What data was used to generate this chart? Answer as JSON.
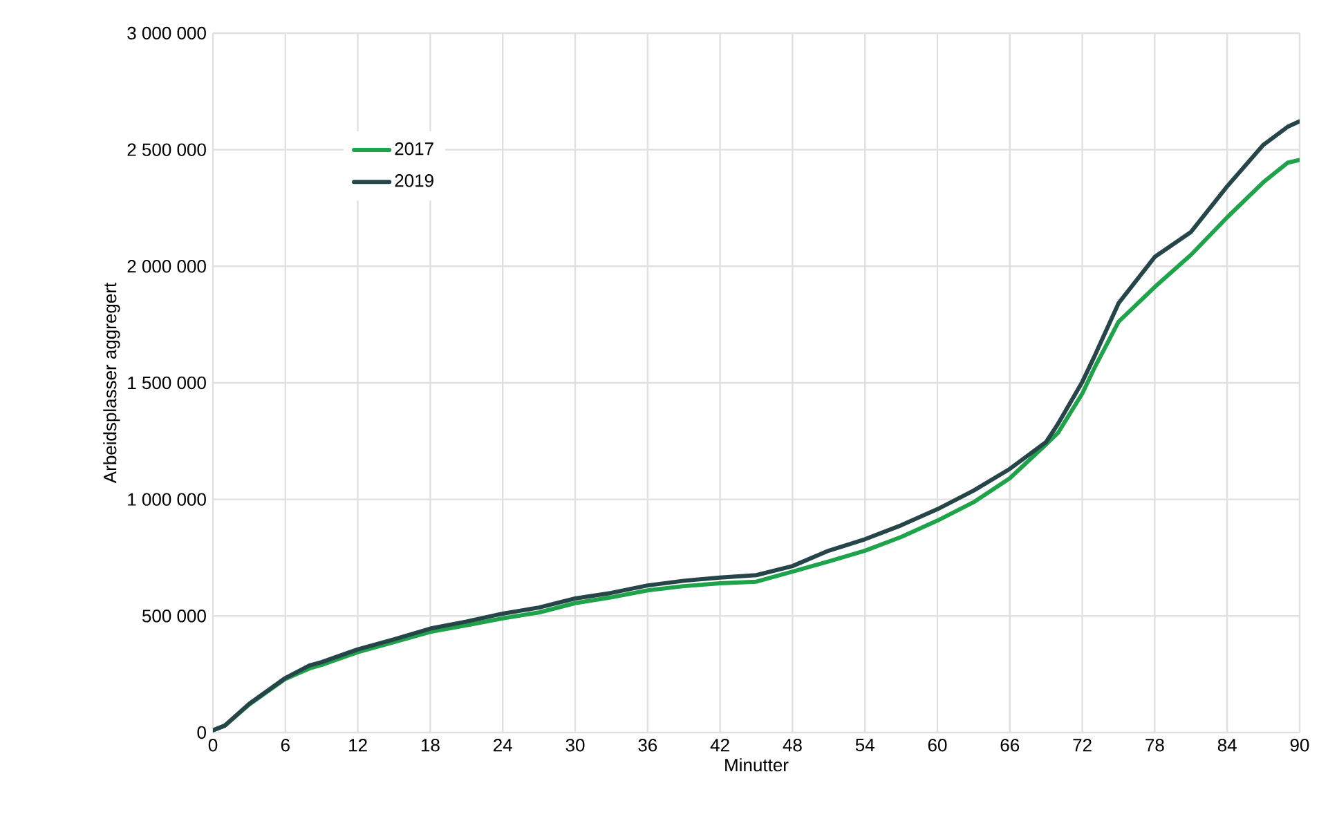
{
  "chart_data": {
    "type": "line",
    "xlabel": "Minutter",
    "ylabel": "Arbeidsplasser aggregert",
    "xlim": [
      0,
      90
    ],
    "xticks": [
      0,
      6,
      12,
      18,
      24,
      30,
      36,
      42,
      48,
      54,
      60,
      66,
      72,
      78,
      84,
      90
    ],
    "ylim": [
      0,
      3000000
    ],
    "yticks": [
      0,
      {
        "value": 500000,
        "label": "500 000"
      },
      {
        "value": 1000000,
        "label": "1 000 000"
      },
      {
        "value": 1500000,
        "label": "1 500 000"
      },
      {
        "value": 2000000,
        "label": "2 000 000"
      },
      {
        "value": 2500000,
        "label": "2 500 000"
      },
      {
        "value": 3000000,
        "label": "3 000 000"
      }
    ],
    "grid": true,
    "legend": "top left",
    "marker": "none",
    "line_style": "solid",
    "x": [
      0,
      1,
      3,
      6,
      8,
      9,
      12,
      15,
      18,
      21,
      24,
      27,
      30,
      33,
      36,
      39,
      42,
      45,
      48,
      51,
      54,
      57,
      60,
      63,
      66,
      69,
      70,
      72,
      73,
      75,
      78,
      81,
      84,
      87,
      89,
      90
    ],
    "series": [
      {
        "name": "2017",
        "color": "#1fa34a",
        "values": [
          10000,
          30000,
          120000,
          230000,
          275000,
          290000,
          345000,
          388000,
          432000,
          460000,
          490000,
          515000,
          555000,
          580000,
          610000,
          628000,
          640000,
          647000,
          690000,
          734000,
          780000,
          839000,
          909000,
          988000,
          1091000,
          1236000,
          1286000,
          1454000,
          1563000,
          1762000,
          1911000,
          2049000,
          2210000,
          2361000,
          2444000,
          2456000
        ]
      },
      {
        "name": "2019",
        "color": "#264548",
        "values": [
          10000,
          30000,
          123000,
          234000,
          288000,
          302000,
          357000,
          400000,
          446000,
          476000,
          510000,
          536000,
          575000,
          599000,
          631000,
          651000,
          665000,
          675000,
          714000,
          780000,
          829000,
          889000,
          958000,
          1038000,
          1131000,
          1246000,
          1325000,
          1504000,
          1613000,
          1841000,
          2040000,
          2147000,
          2343000,
          2521000,
          2598000,
          2622000
        ]
      }
    ]
  }
}
